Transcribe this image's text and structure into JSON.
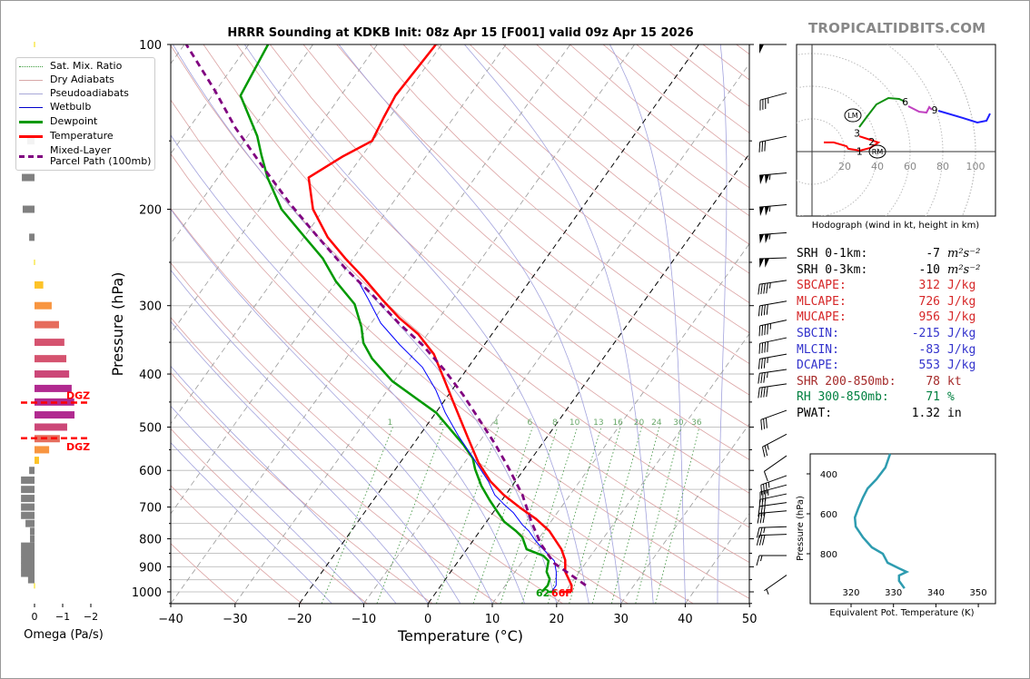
{
  "brand": "TROPICALTIDBITS.COM",
  "legend": [
    {
      "label": "Sat. Mix. Ratio",
      "color": "#3a9a3a",
      "style": "dotted"
    },
    {
      "label": "Dry Adiabats",
      "color": "#d8a8a8",
      "style": "solid"
    },
    {
      "label": "Pseudoadiabats",
      "color": "#a8a8d8",
      "style": "solid"
    },
    {
      "label": "Wetbulb",
      "color": "#0000cc",
      "style": "solid"
    },
    {
      "label": "Dewpoint",
      "color": "#009900",
      "style": "thick"
    },
    {
      "label": "Temperature",
      "color": "#ff0000",
      "style": "thick"
    },
    {
      "label": "Mixed-Layer",
      "label2": "Parcel Path (100mb)",
      "color": "#800080",
      "style": "dashed"
    }
  ],
  "stats": [
    {
      "label": "SRH 0-1km:",
      "value": "-7",
      "unit": "m²s⁻²",
      "color": "#000000",
      "italic": true
    },
    {
      "label": "SRH 0-3km:",
      "value": "-10",
      "unit": "m²s⁻²",
      "color": "#000000",
      "italic": true
    },
    {
      "label": "SBCAPE:",
      "value": "312",
      "unit": "J/kg",
      "color": "#d62728"
    },
    {
      "label": "MLCAPE:",
      "value": "726",
      "unit": "J/kg",
      "color": "#d62728"
    },
    {
      "label": "MUCAPE:",
      "value": "956",
      "unit": "J/kg",
      "color": "#d62728"
    },
    {
      "label": "SBCIN:",
      "value": "-215",
      "unit": "J/kg",
      "color": "#3333cc"
    },
    {
      "label": "MLCIN:",
      "value": "-83",
      "unit": "J/kg",
      "color": "#3333cc"
    },
    {
      "label": "DCAPE:",
      "value": "553",
      "unit": "J/kg",
      "color": "#3333cc"
    },
    {
      "label": "SHR 200-850mb:",
      "value": "78",
      "unit": "kt",
      "color": "#a52a2a"
    },
    {
      "label": "RH 300-850mb:",
      "value": "71",
      "unit": "%",
      "color": "#008040"
    },
    {
      "label": "PWAT:",
      "value": "1.32",
      "unit": "in",
      "color": "#000000"
    }
  ],
  "chart_data": [
    {
      "type": "line",
      "name": "skewt",
      "title": "HRRR Sounding at KDKB Init: 08z Apr 15 [F001] valid 09z Apr 15 2026",
      "xlabel": "Temperature (°C)",
      "ylabel": "Pressure (hPa)",
      "xlim": [
        -40,
        50
      ],
      "ylim": [
        1050,
        100
      ],
      "xticks": [
        "−40",
        "−30",
        "−20",
        "−10",
        "0",
        "10",
        "20",
        "30",
        "40",
        "50"
      ],
      "xtick_values": [
        -40,
        -30,
        -20,
        -10,
        0,
        10,
        20,
        30,
        40,
        50
      ],
      "yticks": [
        "100",
        "200",
        "300",
        "400",
        "500",
        "600",
        "700",
        "800",
        "900",
        "1000"
      ],
      "ytick_values": [
        100,
        200,
        300,
        400,
        500,
        600,
        700,
        800,
        900,
        1000
      ],
      "mixing_ratio_labels": [
        "1",
        "2",
        "4",
        "6",
        "8",
        "10",
        "13",
        "16",
        "20",
        "24",
        "30",
        "36"
      ],
      "mixing_ratio_values": [
        1,
        2,
        4,
        6,
        8,
        10,
        13,
        16,
        20,
        24,
        30,
        36
      ],
      "surface_dewpoint_label": "62",
      "surface_temperature_label": "66F",
      "series": [
        {
          "name": "Temperature",
          "color": "#ff0000",
          "points": [
            [
              1000,
              21.0
            ],
            [
              973,
              20.3
            ],
            [
              919,
              17.8
            ],
            [
              875,
              16.5
            ],
            [
              836,
              14.7
            ],
            [
              774,
              10.8
            ],
            [
              736,
              7.4
            ],
            [
              704,
              3.9
            ],
            [
              665,
              -0.3
            ],
            [
              628,
              -3.9
            ],
            [
              581,
              -7.8
            ],
            [
              522,
              -12.3
            ],
            [
              454,
              -18.1
            ],
            [
              412,
              -22.1
            ],
            [
              368,
              -26.8
            ],
            [
              338,
              -31.5
            ],
            [
              316,
              -36.2
            ],
            [
              292,
              -41.0
            ],
            [
              266,
              -46.4
            ],
            [
              246,
              -51.2
            ],
            [
              225,
              -56.3
            ],
            [
              200,
              -61.7
            ],
            [
              175,
              -65.9
            ],
            [
              160,
              -62.9
            ],
            [
              150,
              -60.1
            ],
            [
              136,
              -60.9
            ],
            [
              124,
              -61.5
            ],
            [
              100,
              -60.9
            ]
          ]
        },
        {
          "name": "Dewpoint",
          "color": "#009900",
          "points": [
            [
              1000,
              16.4
            ],
            [
              973,
              16.6
            ],
            [
              948,
              16.2
            ],
            [
              919,
              14.9
            ],
            [
              878,
              14.0
            ],
            [
              859,
              12.6
            ],
            [
              836,
              9.3
            ],
            [
              795,
              7.3
            ],
            [
              774,
              5.6
            ],
            [
              745,
              2.8
            ],
            [
              717,
              0.8
            ],
            [
              680,
              -1.9
            ],
            [
              640,
              -4.8
            ],
            [
              597,
              -7.6
            ],
            [
              570,
              -9.2
            ],
            [
              538,
              -12.2
            ],
            [
              509,
              -15.4
            ],
            [
              471,
              -19.9
            ],
            [
              445,
              -24.3
            ],
            [
              412,
              -30.3
            ],
            [
              375,
              -35.9
            ],
            [
              351,
              -39.0
            ],
            [
              328,
              -41.1
            ],
            [
              298,
              -44.7
            ],
            [
              271,
              -50.1
            ],
            [
              246,
              -54.7
            ],
            [
              224,
              -60.1
            ],
            [
              200,
              -66.6
            ],
            [
              175,
              -72.3
            ],
            [
              159,
              -75.8
            ],
            [
              147,
              -78.5
            ],
            [
              124,
              -85.6
            ],
            [
              100,
              -87.0
            ]
          ]
        },
        {
          "name": "Wetbulb",
          "color": "#0000ff",
          "points": [
            [
              1000,
              17.9
            ],
            [
              973,
              17.9
            ],
            [
              919,
              16.4
            ],
            [
              878,
              14.9
            ],
            [
              836,
              11.9
            ],
            [
              806,
              9.7
            ],
            [
              774,
              7.6
            ],
            [
              754,
              5.9
            ],
            [
              717,
              3.2
            ],
            [
              691,
              0.7
            ],
            [
              665,
              -1.7
            ],
            [
              628,
              -4.2
            ],
            [
              593,
              -7.1
            ],
            [
              560,
              -10.0
            ],
            [
              519,
              -13.9
            ],
            [
              471,
              -18.5
            ],
            [
              428,
              -22.5
            ],
            [
              389,
              -27.1
            ],
            [
              354,
              -33.1
            ],
            [
              323,
              -38.5
            ],
            [
              292,
              -43.1
            ],
            [
              271,
              -46.6
            ]
          ]
        },
        {
          "name": "Mixed-Layer Parcel Path (100mb)",
          "color": "#800080",
          "points": [
            [
              973,
              22.5
            ],
            [
              886,
              15.1
            ],
            [
              817,
              10.9
            ],
            [
              745,
              7.0
            ],
            [
              665,
              2.6
            ],
            [
              593,
              -2.6
            ],
            [
              538,
              -7.2
            ],
            [
              490,
              -11.9
            ],
            [
              437,
              -17.7
            ],
            [
              394,
              -23.3
            ],
            [
              354,
              -29.6
            ],
            [
              323,
              -35.7
            ],
            [
              287,
              -42.9
            ],
            [
              256,
              -50.2
            ],
            [
              225,
              -57.8
            ],
            [
              196,
              -65.7
            ],
            [
              168,
              -74.0
            ],
            [
              142,
              -82.8
            ],
            [
              121,
              -90.3
            ],
            [
              100,
              -99.7
            ]
          ]
        }
      ],
      "wind_barbs": [
        {
          "p": 100,
          "speed_kt": 50,
          "dir": 270
        },
        {
          "p": 125,
          "speed_kt": 35,
          "dir": 255
        },
        {
          "p": 150,
          "speed_kt": 30,
          "dir": 258
        },
        {
          "p": 175,
          "speed_kt": 105,
          "dir": 265
        },
        {
          "p": 200,
          "speed_kt": 105,
          "dir": 265
        },
        {
          "p": 225,
          "speed_kt": 105,
          "dir": 266
        },
        {
          "p": 250,
          "speed_kt": 100,
          "dir": 268
        },
        {
          "p": 275,
          "speed_kt": 45,
          "dir": 262
        },
        {
          "p": 300,
          "speed_kt": 40,
          "dir": 260
        },
        {
          "p": 325,
          "speed_kt": 45,
          "dir": 258
        },
        {
          "p": 350,
          "speed_kt": 40,
          "dir": 258
        },
        {
          "p": 375,
          "speed_kt": 35,
          "dir": 260
        },
        {
          "p": 400,
          "speed_kt": 35,
          "dir": 262
        },
        {
          "p": 425,
          "speed_kt": 40,
          "dir": 262
        },
        {
          "p": 475,
          "speed_kt": 30,
          "dir": 250
        },
        {
          "p": 525,
          "speed_kt": 25,
          "dir": 242
        },
        {
          "p": 575,
          "speed_kt": 10,
          "dir": 235
        },
        {
          "p": 625,
          "speed_kt": 35,
          "dir": 250
        },
        {
          "p": 650,
          "speed_kt": 35,
          "dir": 255
        },
        {
          "p": 675,
          "speed_kt": 30,
          "dir": 258
        },
        {
          "p": 700,
          "speed_kt": 30,
          "dir": 262
        },
        {
          "p": 725,
          "speed_kt": 30,
          "dir": 265
        },
        {
          "p": 775,
          "speed_kt": 25,
          "dir": 268
        },
        {
          "p": 800,
          "speed_kt": 30,
          "dir": 268
        },
        {
          "p": 875,
          "speed_kt": 15,
          "dir": 270
        },
        {
          "p": 950,
          "speed_kt": 5,
          "dir": 235
        }
      ]
    },
    {
      "type": "bar",
      "name": "omega",
      "xlabel": "Omega (Pa/s)",
      "xticks": [
        "0",
        "−1",
        "−2"
      ],
      "xtick_values": [
        0,
        -1,
        -2
      ],
      "dgz_label": "DGZ",
      "dgz_pressures": [
        451,
        524
      ],
      "points": [
        [
          100,
          -0.02
        ],
        [
          150,
          0.26
        ],
        [
          175,
          0.45
        ],
        [
          200,
          0.42
        ],
        [
          225,
          0.19
        ],
        [
          250,
          -0.02
        ],
        [
          275,
          -0.31
        ],
        [
          300,
          -0.61
        ],
        [
          325,
          -0.87
        ],
        [
          350,
          -1.06
        ],
        [
          375,
          -1.13
        ],
        [
          400,
          -1.23
        ],
        [
          425,
          -1.32
        ],
        [
          450,
          -1.41
        ],
        [
          475,
          -1.42
        ],
        [
          500,
          -1.16
        ],
        [
          525,
          -0.9
        ],
        [
          550,
          -0.52
        ],
        [
          575,
          -0.16
        ],
        [
          600,
          0.19
        ],
        [
          625,
          0.48
        ],
        [
          650,
          0.48
        ],
        [
          675,
          0.48
        ],
        [
          700,
          0.48
        ],
        [
          725,
          0.48
        ],
        [
          750,
          0.32
        ],
        [
          775,
          0.16
        ],
        [
          800,
          0.16
        ],
        [
          825,
          0.48
        ],
        [
          850,
          0.48
        ],
        [
          875,
          0.48
        ],
        [
          900,
          0.48
        ],
        [
          925,
          0.48
        ],
        [
          950,
          0.23
        ],
        [
          975,
          -0.02
        ]
      ]
    },
    {
      "type": "line",
      "name": "hodograph",
      "xlabel": "Hodograph (wind in kt, height in km)",
      "ring_labels": [
        "20",
        "40",
        "60",
        "80",
        "100"
      ],
      "ring_values": [
        20,
        40,
        60,
        80,
        100
      ],
      "segments": [
        {
          "name": "0-3km",
          "color": "#ff0000",
          "points": [
            [
              7.2,
              5.6
            ],
            [
              13.3,
              5.6
            ],
            [
              21.1,
              3.3
            ],
            [
              22.2,
              1.7
            ],
            [
              29.4,
              0.6
            ],
            [
              35.6,
              2.2
            ],
            [
              40.6,
              5.6
            ],
            [
              33.9,
              7.8
            ],
            [
              28.9,
              9.4
            ]
          ]
        },
        {
          "name": "3-6km",
          "color": "#109010",
          "points": [
            [
              28.9,
              15
            ],
            [
              33.9,
              21.7
            ],
            [
              39.4,
              28.9
            ],
            [
              46.7,
              32.8
            ],
            [
              53.3,
              32.2
            ],
            [
              56.7,
              30.6
            ]
          ]
        },
        {
          "name": "6-9km",
          "color": "#c040c0",
          "points": [
            [
              58.9,
              27.8
            ],
            [
              65.6,
              24.4
            ],
            [
              70,
              23.9
            ],
            [
              71.7,
              27.2
            ],
            [
              73.3,
              25.6
            ]
          ]
        },
        {
          "name": "9+km",
          "color": "#2020ff",
          "points": [
            [
              77.2,
              25
            ],
            [
              92.2,
              20.6
            ],
            [
              101.1,
              17.8
            ],
            [
              106.7,
              18.9
            ],
            [
              108.9,
              23.3
            ]
          ]
        }
      ],
      "height_labels": [
        {
          "text": "1",
          "u": 29,
          "v": 0.3
        },
        {
          "text": "2",
          "u": 36.5,
          "v": 6.2
        },
        {
          "text": "3",
          "u": 27.5,
          "v": 11.5
        },
        {
          "text": "6",
          "u": 57,
          "v": 30.5
        },
        {
          "text": "9",
          "u": 75,
          "v": 25.5
        }
      ],
      "storm_motion": [
        {
          "text": "LM",
          "u": 25,
          "v": 22.2
        },
        {
          "text": "RM",
          "u": 40,
          "v": 0
        }
      ]
    },
    {
      "type": "line",
      "name": "theta-e",
      "xlabel": "Equivalent Pot. Temperature (K)",
      "ylabel": "Pressure (hPa)",
      "xticks": [
        "320",
        "330",
        "340",
        "350"
      ],
      "xtick_values": [
        320,
        330,
        340,
        350
      ],
      "yticks": [
        "400",
        "600",
        "800"
      ],
      "ytick_values": [
        400,
        600,
        800
      ],
      "color": "#2e9cb0",
      "points": [
        [
          300,
          329.2
        ],
        [
          368,
          328.1
        ],
        [
          427,
          326.0
        ],
        [
          473,
          323.9
        ],
        [
          518,
          322.8
        ],
        [
          573,
          321.7
        ],
        [
          618,
          320.9
        ],
        [
          664,
          321.1
        ],
        [
          718,
          322.8
        ],
        [
          768,
          324.9
        ],
        [
          800,
          327.5
        ],
        [
          845,
          328.6
        ],
        [
          873,
          331.3
        ],
        [
          891,
          333.1
        ],
        [
          909,
          331.3
        ],
        [
          936,
          331.3
        ],
        [
          973,
          332.6
        ]
      ]
    }
  ]
}
